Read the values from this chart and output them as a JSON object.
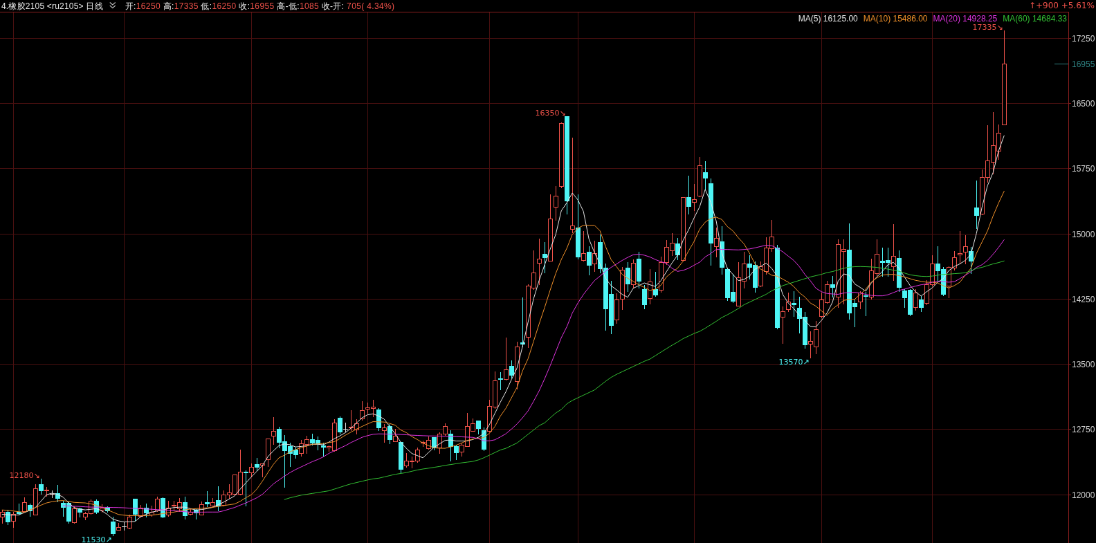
{
  "chart_data": {
    "type": "candlestick",
    "title": "4.橡胶2105 <ru2105> 日线",
    "subtitle": "开:16250 高:17335 低:16250 收:16955 高-低:1085 收-开: 705( 4.34%)",
    "categories": [
      null,
      null,
      null,
      null,
      null,
      null,
      null,
      null,
      null,
      null,
      null,
      null,
      null,
      null,
      null,
      null,
      null,
      null,
      null,
      null,
      null,
      null,
      null,
      null,
      null,
      null,
      null,
      null,
      null,
      null,
      null,
      null,
      null,
      null,
      null,
      null,
      null,
      null,
      null,
      null,
      null,
      null,
      null,
      null,
      null,
      null,
      null,
      null,
      null,
      null,
      null,
      null,
      null,
      null,
      null,
      null,
      null,
      null,
      null,
      null,
      null,
      null,
      null,
      null,
      null,
      null,
      null,
      null,
      null,
      null,
      null,
      null,
      null,
      null,
      null,
      null,
      null,
      null,
      null,
      null,
      null,
      null,
      null,
      null,
      null,
      null,
      null,
      null,
      null,
      null,
      null,
      null,
      null,
      null,
      null,
      null,
      null,
      null,
      null,
      null,
      null,
      null,
      null,
      null,
      null,
      null,
      null,
      null,
      null,
      null,
      null,
      null,
      null,
      null,
      null,
      null,
      null,
      null,
      null,
      null,
      null,
      null,
      null,
      null,
      null,
      null,
      null,
      null,
      null,
      null,
      null,
      null,
      null,
      null,
      null,
      null,
      null,
      null,
      null,
      null,
      null,
      null,
      null,
      null,
      null,
      null,
      null,
      null,
      null,
      null,
      null,
      null,
      null,
      null,
      null,
      null,
      null,
      null,
      null,
      null,
      null,
      null,
      null,
      null,
      null,
      null,
      null,
      null,
      null,
      null,
      null,
      null,
      null,
      null,
      null,
      null,
      null,
      null,
      null,
      null,
      null,
      null
    ],
    "ohlc": [
      [
        11741,
        11821,
        11674,
        11795
      ],
      [
        11795,
        11821,
        11656,
        11682
      ],
      [
        11693,
        11795,
        11621,
        11773
      ],
      [
        11800,
        11893,
        11763,
        11773
      ],
      [
        11805,
        11968,
        11800,
        11907
      ],
      [
        11875,
        11893,
        11749,
        11805
      ],
      [
        11768,
        12115,
        11763,
        12072
      ],
      [
        12115,
        12180,
        12008,
        12040
      ],
      [
        12045,
        12088,
        11981,
        12050
      ],
      [
        12008,
        12048,
        11968,
        12008
      ],
      [
        12016,
        12109,
        11915,
        11947
      ],
      [
        11901,
        11928,
        11754,
        11848
      ],
      [
        11901,
        11915,
        11674,
        11688
      ],
      [
        11682,
        11861,
        11674,
        11835
      ],
      [
        11835,
        11848,
        11741,
        11789
      ],
      [
        11746,
        11800,
        11714,
        11781
      ],
      [
        11781,
        11941,
        11773,
        11928
      ],
      [
        11928,
        11941,
        11781,
        11789
      ],
      [
        11821,
        11888,
        11800,
        11848
      ],
      [
        11848,
        11861,
        11795,
        11808
      ],
      [
        11688,
        11741,
        11530,
        11541
      ],
      [
        11592,
        11674,
        11589,
        11624
      ],
      [
        11634,
        11682,
        11594,
        11634
      ],
      [
        11613,
        11768,
        11608,
        11741
      ],
      [
        11947,
        11947,
        11701,
        11763
      ],
      [
        11749,
        11880,
        11741,
        11848
      ],
      [
        11848,
        11893,
        11741,
        11781
      ],
      [
        11763,
        11867,
        11749,
        11800
      ],
      [
        11816,
        11976,
        11808,
        11947
      ],
      [
        11955,
        11968,
        11736,
        11736
      ],
      [
        11763,
        11923,
        11754,
        11848
      ],
      [
        11869,
        11928,
        11821,
        11880
      ],
      [
        11835,
        11955,
        11808,
        11907
      ],
      [
        11907,
        11976,
        11720,
        11754
      ],
      [
        11776,
        11835,
        11768,
        11800
      ],
      [
        11823,
        11830,
        11716,
        11783
      ],
      [
        11770,
        11915,
        11765,
        11889
      ],
      [
        11907,
        12040,
        11863,
        11883
      ],
      [
        11870,
        11955,
        11863,
        11913
      ],
      [
        11936,
        12096,
        11810,
        11863
      ],
      [
        11875,
        12048,
        11870,
        12000
      ],
      [
        12000,
        12120,
        11955,
        12021
      ],
      [
        12008,
        12226,
        11995,
        12226
      ],
      [
        12008,
        12518,
        11995,
        12261
      ],
      [
        12261,
        12274,
        11868,
        12240
      ],
      [
        12253,
        12354,
        12207,
        12314
      ],
      [
        12346,
        12420,
        12274,
        12308
      ],
      [
        12337,
        12353,
        12207,
        12353
      ],
      [
        12406,
        12645,
        12327,
        12645
      ],
      [
        12672,
        12889,
        12579,
        12725
      ],
      [
        12751,
        12773,
        12539,
        12592
      ],
      [
        12613,
        12685,
        12083,
        12499
      ],
      [
        12552,
        12592,
        12327,
        12468
      ],
      [
        12518,
        12539,
        12420,
        12454
      ],
      [
        12473,
        12624,
        12446,
        12587
      ],
      [
        12579,
        12672,
        12473,
        12632
      ],
      [
        12632,
        12698,
        12566,
        12587
      ],
      [
        12624,
        12667,
        12513,
        12579
      ],
      [
        12560,
        12592,
        12446,
        12534
      ],
      [
        12534,
        12560,
        12499,
        12555
      ],
      [
        12507,
        12866,
        12499,
        12826
      ],
      [
        12881,
        12894,
        12700,
        12716
      ],
      [
        12754,
        12826,
        12722,
        12754
      ],
      [
        12765,
        12964,
        12738,
        12778
      ],
      [
        12744,
        12863,
        12698,
        12813
      ],
      [
        12871,
        13070,
        12858,
        12964
      ],
      [
        12982,
        13057,
        12937,
        12996
      ],
      [
        12988,
        13083,
        12897,
        13004
      ],
      [
        12974,
        12990,
        12739,
        12760
      ],
      [
        12739,
        12808,
        12599,
        12767
      ],
      [
        12786,
        12808,
        12585,
        12627
      ],
      [
        12613,
        12752,
        12613,
        12674
      ],
      [
        12599,
        12599,
        12255,
        12283
      ],
      [
        12333,
        12473,
        12314,
        12384
      ],
      [
        12378,
        12431,
        12305,
        12389
      ],
      [
        12384,
        12535,
        12367,
        12515
      ],
      [
        12590,
        12618,
        12557,
        12604
      ],
      [
        12529,
        12669,
        12523,
        12627
      ],
      [
        12655,
        12660,
        12515,
        12529
      ],
      [
        12535,
        12711,
        12473,
        12697
      ],
      [
        12697,
        12814,
        12683,
        12781
      ],
      [
        12697,
        12739,
        12389,
        12543
      ],
      [
        12557,
        12571,
        12403,
        12473
      ],
      [
        12487,
        12585,
        12445,
        12571
      ],
      [
        12557,
        12934,
        12551,
        12781
      ],
      [
        12730,
        12870,
        12725,
        12814
      ],
      [
        12851,
        12851,
        12697,
        12753
      ],
      [
        12739,
        12767,
        12507,
        12515
      ],
      [
        12725,
        13088,
        12720,
        13018
      ],
      [
        13004,
        13410,
        12990,
        13312
      ],
      [
        13334,
        13402,
        13206,
        13317
      ],
      [
        13326,
        13801,
        13317,
        13438
      ],
      [
        13474,
        13541,
        13340,
        13368
      ],
      [
        13298,
        13754,
        13214,
        13703
      ],
      [
        13751,
        14263,
        13703,
        13726
      ],
      [
        13810,
        14416,
        13689,
        14402
      ],
      [
        14374,
        14808,
        14360,
        14551
      ],
      [
        14660,
        14939,
        14416,
        14710
      ],
      [
        14766,
        14900,
        14548,
        14718
      ],
      [
        14688,
        15451,
        14682,
        15171
      ],
      [
        15303,
        15549,
        15157,
        15437
      ],
      [
        15543,
        16276,
        15526,
        16270
      ],
      [
        16350,
        16350,
        15227,
        15370
      ],
      [
        15055,
        16103,
        15015,
        15089
      ],
      [
        15068,
        15453,
        14710,
        14723
      ],
      [
        14691,
        15028,
        14683,
        14776
      ],
      [
        14789,
        14856,
        14524,
        14630
      ],
      [
        14651,
        14914,
        14564,
        14776
      ],
      [
        14901,
        14988,
        14550,
        14590
      ],
      [
        14603,
        14657,
        13887,
        14126
      ],
      [
        14304,
        14458,
        13847,
        13940
      ],
      [
        14006,
        14311,
        13967,
        14240
      ],
      [
        14245,
        14611,
        14126,
        14585
      ],
      [
        14603,
        14670,
        14338,
        14418
      ],
      [
        14418,
        14702,
        14378,
        14662
      ],
      [
        14710,
        14789,
        14378,
        14444
      ],
      [
        14357,
        14404,
        14139,
        14179
      ],
      [
        14258,
        14590,
        14192,
        14444
      ],
      [
        14357,
        14558,
        14277,
        14285
      ],
      [
        14351,
        14736,
        14325,
        14670
      ],
      [
        14670,
        14922,
        14649,
        14842
      ],
      [
        14803,
        15002,
        14750,
        14890
      ],
      [
        14882,
        14949,
        14702,
        14750
      ],
      [
        14696,
        15418,
        14683,
        15418
      ],
      [
        15418,
        15665,
        15227,
        15307
      ],
      [
        15360,
        15567,
        15267,
        15392
      ],
      [
        15434,
        15877,
        15426,
        15785
      ],
      [
        15705,
        15832,
        15506,
        15631
      ],
      [
        15578,
        15631,
        14638,
        14882
      ],
      [
        14850,
        15068,
        14736,
        14949
      ],
      [
        14909,
        15081,
        14537,
        14609
      ],
      [
        14590,
        14603,
        14232,
        14258
      ],
      [
        14325,
        14537,
        14205,
        14213
      ],
      [
        14171,
        14670,
        14166,
        14497
      ],
      [
        14458,
        14789,
        14378,
        14657
      ],
      [
        14655,
        14753,
        14482,
        14610
      ],
      [
        14636,
        14681,
        14328,
        14376
      ],
      [
        14403,
        14681,
        14389,
        14620
      ],
      [
        14567,
        14960,
        14535,
        14841
      ],
      [
        14833,
        15159,
        14801,
        14965
      ],
      [
        14841,
        14867,
        13904,
        13912
      ],
      [
        14044,
        14164,
        13739,
        14105
      ],
      [
        14132,
        14323,
        14105,
        14217
      ],
      [
        14204,
        14336,
        14052,
        14177
      ],
      [
        14142,
        14275,
        13859,
        14018
      ],
      [
        14044,
        14097,
        13681,
        13718
      ],
      [
        13734,
        13872,
        13570,
        13760
      ],
      [
        13699,
        13991,
        13620,
        13898
      ],
      [
        14052,
        14318,
        14036,
        14243
      ],
      [
        14212,
        14456,
        14204,
        14416
      ],
      [
        14416,
        14509,
        14270,
        14376
      ],
      [
        14270,
        14933,
        14150,
        14880
      ],
      [
        14801,
        14933,
        14190,
        14822
      ],
      [
        14811,
        15119,
        14018,
        14079
      ],
      [
        14204,
        14243,
        13930,
        14151
      ],
      [
        14217,
        14336,
        14137,
        14323
      ],
      [
        14288,
        14328,
        14058,
        14270
      ],
      [
        14270,
        14708,
        14249,
        14575
      ],
      [
        14541,
        14933,
        14522,
        14769
      ],
      [
        14689,
        14841,
        14509,
        14663
      ],
      [
        14695,
        14841,
        14509,
        14663
      ],
      [
        14620,
        15106,
        14461,
        14742
      ],
      [
        14721,
        14806,
        14336,
        14376
      ],
      [
        14344,
        14363,
        14150,
        14257
      ],
      [
        14350,
        14363,
        14058,
        14063
      ],
      [
        14150,
        14363,
        14124,
        14318
      ],
      [
        14240,
        14280,
        14107,
        14147
      ],
      [
        14200,
        14465,
        14187,
        14412
      ],
      [
        14412,
        14749,
        14399,
        14656
      ],
      [
        14656,
        14856,
        14452,
        14564
      ],
      [
        14593,
        14611,
        14288,
        14293
      ],
      [
        14399,
        14625,
        14266,
        14611
      ],
      [
        14606,
        14797,
        14585,
        14723
      ],
      [
        14757,
        15031,
        14651,
        14771
      ],
      [
        14792,
        14983,
        14651,
        14850
      ],
      [
        14797,
        14845,
        14545,
        14678
      ],
      [
        15301,
        15607,
        15063,
        15200
      ],
      [
        15227,
        15739,
        15216,
        15652
      ],
      [
        15646,
        16243,
        15593,
        15840
      ],
      [
        15824,
        16395,
        15686,
        16018
      ],
      [
        15952,
        16257,
        15859,
        16159
      ],
      [
        16250,
        17335,
        16250,
        16955
      ]
    ],
    "colors": [
      "#f0524a",
      "#4ef5f5",
      "#f0524a",
      "#4ef5f5",
      "#f0524a",
      "#4ef5f5",
      "#f0524a",
      "#4ef5f5",
      "#f0524a",
      "#e0e0e0",
      "#4ef5f5",
      "#4ef5f5",
      "#4ef5f5",
      "#f0524a",
      "#4ef5f5",
      "#f0524a",
      "#f0524a",
      "#4ef5f5",
      "#f0524a",
      "#4ef5f5",
      "#4ef5f5",
      "#f0524a",
      "#e0e0e0",
      "#f0524a",
      "#4ef5f5",
      "#f0524a",
      "#4ef5f5",
      "#f0524a",
      "#f0524a",
      "#4ef5f5",
      "#f0524a",
      "#f0524a",
      "#f0524a",
      "#4ef5f5",
      "#f0524a",
      "#4ef5f5",
      "#f0524a",
      "#4ef5f5",
      "#f0524a",
      "#4ef5f5",
      "#f0524a",
      "#f0524a",
      "#f0524a",
      "#f0524a",
      "#4ef5f5",
      "#f0524a",
      "#4ef5f5",
      "#f0524a",
      "#f0524a",
      "#f0524a",
      "#4ef5f5",
      "#4ef5f5",
      "#4ef5f5",
      "#4ef5f5",
      "#f0524a",
      "#f0524a",
      "#4ef5f5",
      "#4ef5f5",
      "#4ef5f5",
      "#f0524a",
      "#f0524a",
      "#4ef5f5",
      "#e0e0e0",
      "#f0524a",
      "#f0524a",
      "#f0524a",
      "#f0524a",
      "#f0524a",
      "#4ef5f5",
      "#f0524a",
      "#4ef5f5",
      "#f0524a",
      "#4ef5f5",
      "#f0524a",
      "#f0524a",
      "#f0524a",
      "#f0524a",
      "#f0524a",
      "#4ef5f5",
      "#f0524a",
      "#f0524a",
      "#4ef5f5",
      "#4ef5f5",
      "#f0524a",
      "#f0524a",
      "#f0524a",
      "#4ef5f5",
      "#4ef5f5",
      "#f0524a",
      "#f0524a",
      "#4ef5f5",
      "#f0524a",
      "#4ef5f5",
      "#f0524a",
      "#4ef5f5",
      "#f0524a",
      "#f0524a",
      "#f0524a",
      "#4ef5f5",
      "#f0524a",
      "#f0524a",
      "#f0524a",
      "#4ef5f5",
      "#f0524a",
      "#4ef5f5",
      "#f0524a",
      "#4ef5f5",
      "#f0524a",
      "#4ef5f5",
      "#4ef5f5",
      "#4ef5f5",
      "#f0524a",
      "#f0524a",
      "#4ef5f5",
      "#f0524a",
      "#4ef5f5",
      "#4ef5f5",
      "#f0524a",
      "#4ef5f5",
      "#f0524a",
      "#f0524a",
      "#f0524a",
      "#4ef5f5",
      "#f0524a",
      "#4ef5f5",
      "#f0524a",
      "#f0524a",
      "#4ef5f5",
      "#4ef5f5",
      "#f0524a",
      "#4ef5f5",
      "#4ef5f5",
      "#4ef5f5",
      "#f0524a",
      "#f0524a",
      "#4ef5f5",
      "#4ef5f5",
      "#f0524a",
      "#f0524a",
      "#f0524a",
      "#4ef5f5",
      "#f0524a",
      "#f0524a",
      "#4ef5f5",
      "#4ef5f5",
      "#4ef5f5",
      "#f0524a",
      "#f0524a",
      "#f0524a",
      "#f0524a",
      "#4ef5f5",
      "#f0524a",
      "#f0524a",
      "#4ef5f5",
      "#4ef5f5",
      "#f0524a",
      "#4ef5f5",
      "#f0524a",
      "#f0524a",
      "#4ef5f5",
      "#4ef5f5",
      "#f0524a",
      "#4ef5f5",
      "#4ef5f5",
      "#4ef5f5",
      "#f0524a",
      "#4ef5f5",
      "#f0524a",
      "#f0524a",
      "#4ef5f5",
      "#4ef5f5",
      "#f0524a",
      "#f0524a",
      "#f0524a",
      "#f0524a",
      "#4ef5f5",
      "#4ef5f5",
      "#f0524a",
      "#f0524a",
      "#f0524a",
      "#f0524a",
      "#f0524a"
    ],
    "series": [
      {
        "name": "MA(5) 16125.00",
        "type": "line",
        "color": "#e6e6e6",
        "values": [
          11770,
          11765,
          11760,
          11763,
          11790,
          11815,
          11848,
          11920,
          11995,
          12013,
          12000,
          11968,
          11901,
          11848,
          11830,
          11821,
          11828,
          11835,
          11810,
          11768,
          11714,
          11695,
          11682,
          11684,
          11688,
          11741,
          11770,
          11795,
          11808,
          11821,
          11835,
          11848,
          11852,
          11853,
          11835,
          11820,
          11825,
          11835,
          11850,
          11880,
          11910,
          11945,
          11982,
          12060,
          12130,
          12200,
          12265,
          12330,
          12433,
          12500,
          12560,
          12579,
          12570,
          12545,
          12550,
          12560,
          12575,
          12575,
          12570,
          12600,
          12640,
          12672,
          12710,
          12760,
          12820,
          12880,
          12915,
          12925,
          12900,
          12865,
          12780,
          12697,
          12600,
          12529,
          12470,
          12445,
          12420,
          12480,
          12540,
          12580,
          12620,
          12625,
          12613,
          12613,
          12613,
          12630,
          12655,
          12700,
          12800,
          12930,
          13060,
          13180,
          13320,
          13452,
          13700,
          13980,
          14250,
          14460,
          14640,
          14820,
          14989,
          15260,
          15353,
          15466,
          15386,
          15254,
          14935,
          14780,
          14650,
          14484,
          14400,
          14351,
          14300,
          14266,
          14370,
          14400,
          14431,
          14410,
          14391,
          14458,
          14560,
          14660,
          14750,
          14920,
          15041,
          15180,
          15307,
          15506,
          15360,
          15140,
          14776,
          14600,
          14530,
          14458,
          14471,
          14509,
          14590,
          14620,
          14660,
          14600,
          14509,
          14300,
          14200,
          14137,
          14060,
          14000,
          13930,
          13925,
          14000,
          14084,
          14210,
          14450,
          14535,
          14520,
          14420,
          14380,
          14336,
          14429,
          14500,
          14562,
          14640,
          14668,
          14600,
          14500,
          14403,
          14330,
          14280,
          14330,
          14373,
          14440,
          14480,
          14572,
          14620,
          14650,
          14691,
          14760,
          15000,
          15300,
          15550,
          15700,
          15950,
          16125
        ]
      },
      {
        "name": "MA(10) 15486.00",
        "type": "line",
        "color": "#f0902a",
        "values": [
          11820,
          11816,
          11808,
          11800,
          11795,
          11820,
          11848,
          11875,
          11901,
          11915,
          11925,
          11928,
          11918,
          11907,
          11904,
          11901,
          11890,
          11875,
          11850,
          11821,
          11795,
          11768,
          11760,
          11754,
          11754,
          11754,
          11754,
          11760,
          11768,
          11778,
          11787,
          11795,
          11808,
          11821,
          11830,
          11835,
          11840,
          11845,
          11850,
          11860,
          11870,
          11880,
          11889,
          11920,
          11960,
          11995,
          12060,
          12150,
          12250,
          12345,
          12420,
          12450,
          12490,
          12515,
          12535,
          12555,
          12575,
          12580,
          12584,
          12595,
          12605,
          12640,
          12680,
          12715,
          12750,
          12780,
          12810,
          12836,
          12834,
          12831,
          12815,
          12795,
          12740,
          12710,
          12665,
          12630,
          12590,
          12560,
          12535,
          12530,
          12529,
          12545,
          12565,
          12590,
          12620,
          12635,
          12645,
          12652,
          12700,
          12780,
          12900,
          12990,
          13110,
          13230,
          13420,
          13560,
          13760,
          13960,
          14150,
          14350,
          14540,
          14700,
          14829,
          14990,
          15060,
          15094,
          15094,
          15094,
          15030,
          14850,
          14700,
          14617,
          14530,
          14485,
          14450,
          14410,
          14380,
          14345,
          14360,
          14404,
          14500,
          14555,
          14600,
          14680,
          14800,
          14909,
          15050,
          15130,
          15174,
          15187,
          15161,
          15080,
          15030,
          14950,
          14882,
          14774,
          14650,
          14590,
          14560,
          14520,
          14509,
          14475,
          14440,
          14390,
          14320,
          14270,
          14200,
          14164,
          14110,
          14058,
          14130,
          14180,
          14230,
          14240,
          14243,
          14300,
          14360,
          14440,
          14490,
          14522,
          14528,
          14530,
          14515,
          14500,
          14480,
          14461,
          14450,
          14439,
          14439,
          14430,
          14400,
          14373,
          14400,
          14439,
          14520,
          14600,
          14771,
          14900,
          15030,
          15200,
          15350,
          15486
        ]
      },
      {
        "name": "MA(20) 14928.25",
        "type": "line",
        "color": "#e033e0",
        "values": [
          null,
          null,
          null,
          null,
          null,
          null,
          null,
          null,
          null,
          null,
          null,
          11869,
          11866,
          11863,
          11860,
          11856,
          11853,
          11852,
          11851,
          11850,
          11849,
          11848,
          11845,
          11841,
          11838,
          11835,
          11831,
          11828,
          11824,
          11821,
          11816,
          11810,
          11805,
          11800,
          11795,
          11795,
          11795,
          11796,
          11796,
          11796,
          11810,
          11830,
          11849,
          11875,
          11900,
          11930,
          11960,
          12000,
          12060,
          12120,
          12165,
          12210,
          12250,
          12285,
          12315,
          12345,
          12375,
          12400,
          12430,
          12470,
          12500,
          12530,
          12560,
          12595,
          12625,
          12655,
          12675,
          12690,
          12695,
          12694,
          12692,
          12691,
          12688,
          12685,
          12680,
          12677,
          12674,
          12672,
          12671,
          12670,
          12669,
          12667,
          12664,
          12661,
          12658,
          12655,
          12640,
          12615,
          12615,
          12627,
          12660,
          12697,
          12750,
          12809,
          12880,
          12960,
          13070,
          13190,
          13330,
          13480,
          13640,
          13800,
          13927,
          14086,
          14200,
          14298,
          14380,
          14458,
          14510,
          14564,
          14610,
          14650,
          14690,
          14725,
          14755,
          14763,
          14750,
          14730,
          14700,
          14675,
          14657,
          14600,
          14564,
          14575,
          14600,
          14635,
          14670,
          14730,
          14770,
          14816,
          14816,
          14816,
          14813,
          14811,
          14816,
          14822,
          14835,
          14850,
          14865,
          14860,
          14830,
          14790,
          14740,
          14690,
          14620,
          14530,
          14456,
          14370,
          14330,
          14310,
          14304,
          14300,
          14315,
          14320,
          14323,
          14315,
          14300,
          14288,
          14283,
          14283,
          14295,
          14320,
          14345,
          14360,
          14378,
          14395,
          14410,
          14420,
          14440,
          14447,
          14445,
          14440,
          14445,
          14480,
          14520,
          14560,
          14610,
          14640,
          14690,
          14760,
          14840,
          14928
        ]
      },
      {
        "name": "MA(60) 14684.33",
        "type": "line",
        "color": "#33c033",
        "values": [
          null,
          null,
          null,
          null,
          null,
          null,
          null,
          null,
          null,
          null,
          null,
          null,
          null,
          null,
          null,
          null,
          null,
          null,
          null,
          null,
          null,
          null,
          null,
          null,
          null,
          null,
          null,
          null,
          null,
          null,
          null,
          null,
          null,
          null,
          null,
          null,
          null,
          null,
          null,
          null,
          null,
          null,
          null,
          null,
          null,
          null,
          null,
          null,
          null,
          null,
          null,
          11940,
          11960,
          11975,
          11990,
          12000,
          12010,
          12020,
          12030,
          12040,
          12060,
          12080,
          12101,
          12120,
          12135,
          12150,
          12165,
          12178,
          12185,
          12200,
          12215,
          12230,
          12240,
          12250,
          12265,
          12280,
          12291,
          12300,
          12310,
          12320,
          12333,
          12342,
          12352,
          12362,
          12370,
          12378,
          12395,
          12420,
          12450,
          12480,
          12510,
          12529,
          12560,
          12590,
          12640,
          12690,
          12740,
          12790,
          12822,
          12880,
          12935,
          12976,
          13040,
          13080,
          13110,
          13140,
          13170,
          13200,
          13250,
          13300,
          13345,
          13380,
          13410,
          13440,
          13470,
          13500,
          13530,
          13555,
          13595,
          13635,
          13675,
          13714,
          13750,
          13790,
          13820,
          13850,
          13874,
          13910,
          13950,
          13990,
          14033,
          14065,
          14100,
          14137,
          14180,
          14210,
          14240,
          14270,
          14300,
          14340,
          14370,
          14400,
          14420,
          14440,
          14460,
          14480,
          14500,
          14515,
          14530,
          14550,
          14562,
          14580,
          14600,
          14612,
          14618,
          14620,
          14618,
          14615,
          14610,
          14600,
          14590,
          14578,
          14565,
          14545,
          14525,
          14515,
          14508,
          14505,
          14510,
          14520,
          14530,
          14532,
          14538,
          14542,
          14548,
          14570,
          14598,
          14610,
          14630,
          14650,
          14665,
          14684
        ]
      }
    ],
    "ylim": [
      11440,
      17550
    ],
    "yticks": [
      12000,
      12750,
      13500,
      14250,
      15000,
      15750,
      16500,
      17250
    ],
    "grid": true,
    "legend": "top right",
    "ref_lines": [
      {
        "axis": "y",
        "value": 16955,
        "label": "16955",
        "color": "#2e8080"
      }
    ],
    "annotations": [
      "17335↘",
      "16350↘",
      "12180↘",
      "11530↗",
      "13570↗",
      "↑+900 +5.61%"
    ]
  }
}
